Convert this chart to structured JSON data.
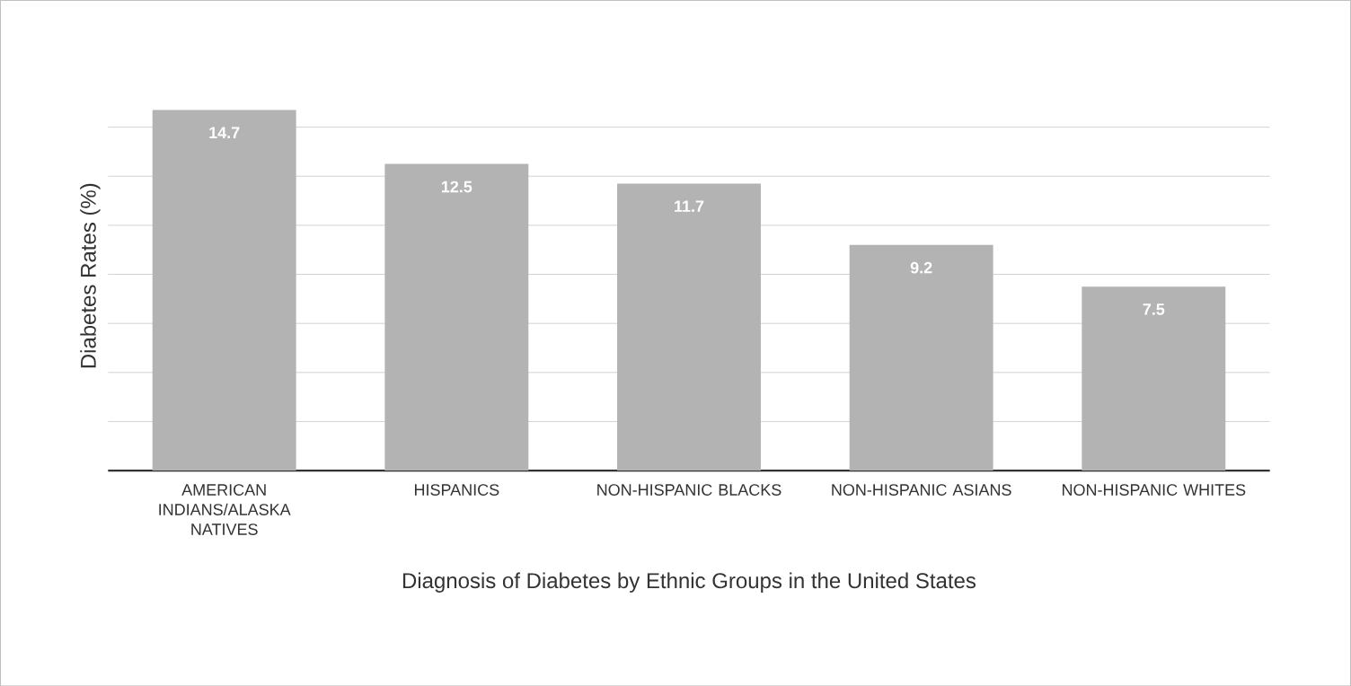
{
  "chart_data": {
    "type": "bar",
    "xlabel": "Diagnosis of Diabetes by Ethnic Groups in the United States",
    "ylabel": "Diabetes Rates (%)",
    "categories": [
      "AMERICAN INDIANS/ALASKA NATIVES",
      "HISPANICS",
      "NON-HISPANIC BLACKS",
      "NON-HISPANIC ASIANS",
      "NON-HISPANIC WHITES"
    ],
    "values": [
      14.7,
      12.5,
      11.7,
      9.2,
      7.5
    ],
    "color": "#b3b3b3",
    "grid": "y",
    "data_labels": true,
    "tick_labels": "x"
  }
}
